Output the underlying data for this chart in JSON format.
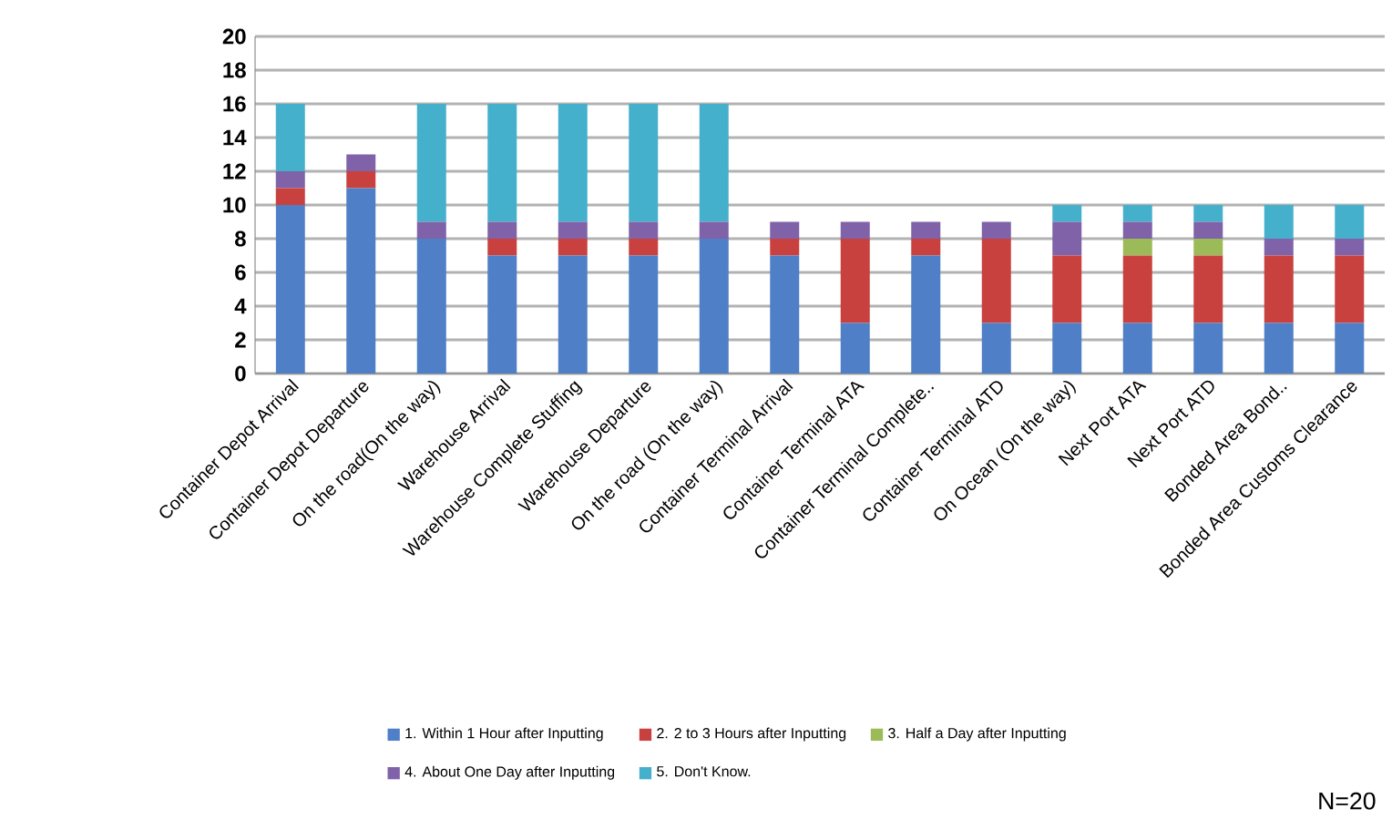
{
  "chart_data": {
    "type": "bar",
    "stacked": true,
    "grid": "y",
    "legend": "bottom",
    "categories": [
      "Container Depot Arrival",
      "Container Depot Departure",
      "On the road(On the way)",
      "Warehouse Arrival",
      "Warehouse Complete Stuffing",
      "Warehouse Departure",
      "On the road (On the way)",
      "Container Terminal Arrival",
      "Container Terminal ATA",
      "Container Terminal Complete..",
      "Container Terminal ATD",
      "On Ocean (On the way)",
      "Next Port ATA",
      "Next Port ATD",
      "Bonded Area Bond..",
      "Bonded Area Customs Clearance"
    ],
    "series": [
      {
        "name": "1. Within 1 Hour after Inputting",
        "color": "#4f7fc6",
        "values": [
          10,
          11,
          8,
          7,
          7,
          7,
          8,
          7,
          3,
          7,
          3,
          3,
          3,
          3,
          3,
          3
        ]
      },
      {
        "name": "2. 2 to 3 Hours after Inputting",
        "color": "#c9413e",
        "values": [
          1,
          1,
          0,
          1,
          1,
          1,
          0,
          1,
          5,
          1,
          5,
          4,
          4,
          4,
          4,
          4
        ]
      },
      {
        "name": "3. Half a Day after Inputting",
        "color": "#9bbb59",
        "values": [
          0,
          0,
          0,
          0,
          0,
          0,
          0,
          0,
          0,
          0,
          0,
          0,
          1,
          1,
          0,
          0
        ]
      },
      {
        "name": "4. About One Day after Inputting",
        "color": "#7f62a8",
        "values": [
          1,
          1,
          1,
          1,
          1,
          1,
          1,
          1,
          1,
          1,
          1,
          2,
          1,
          1,
          1,
          1
        ]
      },
      {
        "name": "5. Don't Know.",
        "color": "#45b0cc",
        "values": [
          4,
          0,
          7,
          7,
          7,
          7,
          7,
          0,
          0,
          0,
          0,
          1,
          1,
          1,
          2,
          2
        ]
      }
    ],
    "ylim": [
      0,
      20
    ],
    "yticks": [
      0,
      2,
      4,
      6,
      8,
      10,
      12,
      14,
      16,
      18,
      20
    ],
    "annotations": [
      "N=20"
    ]
  }
}
